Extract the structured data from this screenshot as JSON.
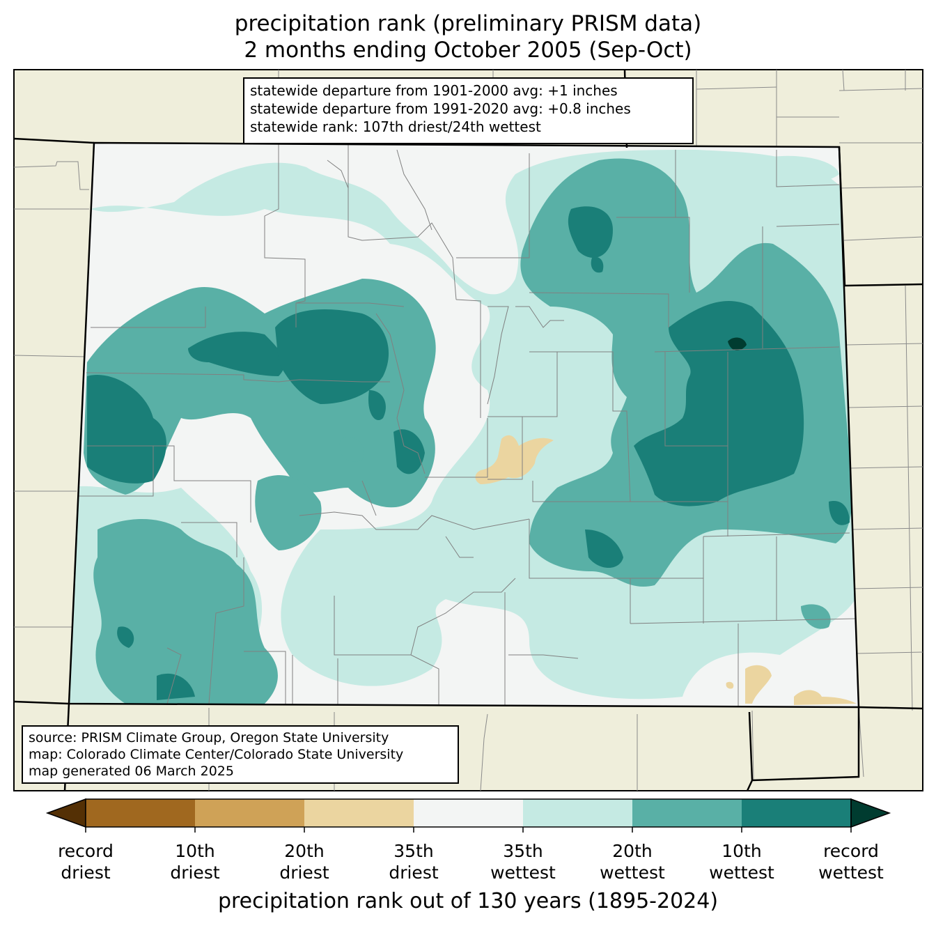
{
  "title": {
    "line1": "precipitation rank (preliminary PRISM data)",
    "line2": "2 months ending October 2005 (Sep-Oct)"
  },
  "stats_box": {
    "line1": "statewide departure from 1901-2000 avg: +1 inches",
    "line2": "statewide departure from 1991-2020 avg: +0.8 inches",
    "line3": "statewide rank: 107th driest/24th wettest"
  },
  "source_box": {
    "line1": "source: PRISM Climate Group, Oregon State University",
    "line2": "map: Colorado Climate Center/Colorado State University",
    "line3": "map generated 06 March 2025"
  },
  "colorbar": {
    "label": "precipitation rank out of 130 years (1895-2024)",
    "ticks": [
      {
        "line1": "record",
        "line2": "driest"
      },
      {
        "line1": "10th",
        "line2": "driest"
      },
      {
        "line1": "20th",
        "line2": "driest"
      },
      {
        "line1": "35th",
        "line2": "driest"
      },
      {
        "line1": "35th",
        "line2": "wettest"
      },
      {
        "line1": "20th",
        "line2": "wettest"
      },
      {
        "line1": "10th",
        "line2": "wettest"
      },
      {
        "line1": "record",
        "line2": "wettest"
      }
    ],
    "colors": {
      "below_record_driest": "#543005",
      "record_to_10th_driest": "#a0681f",
      "10th_to_20th_driest": "#cfa257",
      "20th_to_35th_driest": "#ebd5a0",
      "near_normal": "#f3f5f4",
      "35th_to_20th_wettest": "#c5eae3",
      "20th_to_10th_wettest": "#59b0a6",
      "10th_to_record_wettest": "#1a7f78",
      "above_record_wettest": "#003c30"
    }
  },
  "map_colors": {
    "land_outside": "#efeedb",
    "state_border": "#000000",
    "county_border": "#808080"
  }
}
